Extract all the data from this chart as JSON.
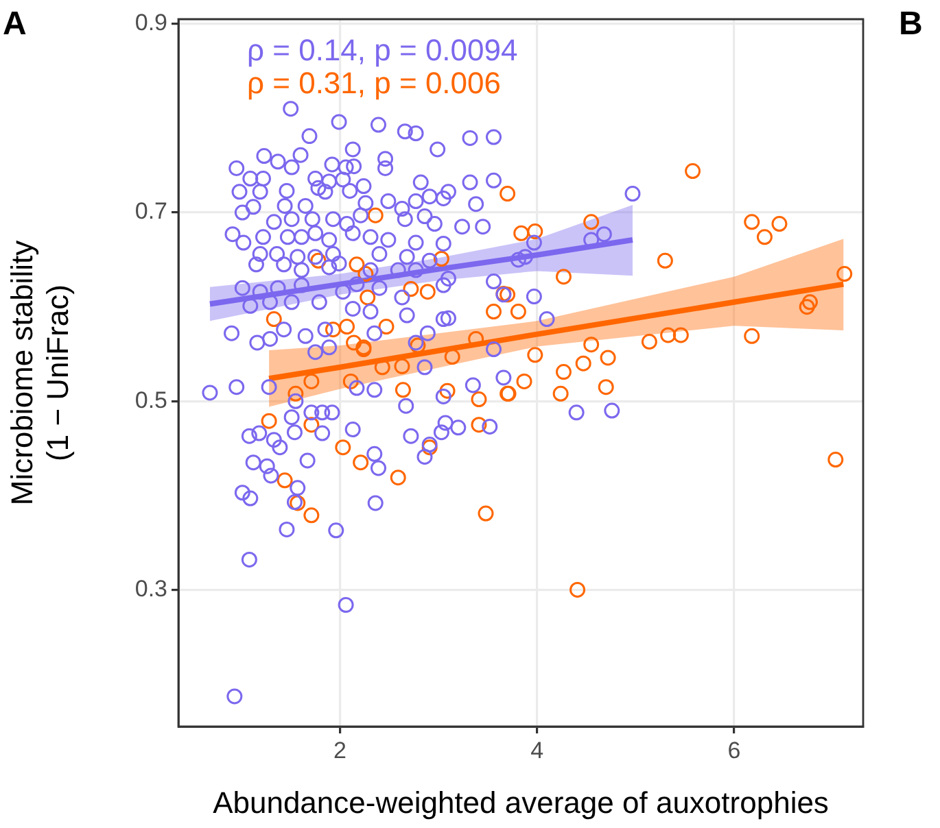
{
  "chart_data": {
    "type": "scatter",
    "xlabel": "Abundance-weighted average of auxotrophies",
    "ylabel": "Microbiome stability\n(1 − UniFrac)",
    "xlim": [
      0.36,
      7.31
    ],
    "ylim": [
      0.155,
      0.905
    ],
    "xticks": [
      2,
      4,
      6
    ],
    "yticks": [
      0.3,
      0.5,
      0.7,
      0.9
    ],
    "grid": true,
    "legend": false,
    "marker": "circle",
    "annotations": [
      "ρ = 0.14, p = 0.0094",
      "ρ = 0.31, p = 0.006",
      "A",
      "B"
    ],
    "series": [
      {
        "type": "scatter",
        "color": "#7b68ee",
        "x": [
          4.97,
          4.55,
          4.68,
          3.97,
          3.81,
          3.88,
          3.97,
          4.1,
          4.4,
          4.76,
          0.68,
          0.95,
          1.28,
          1.55,
          1.51,
          1.71,
          1.82,
          1.92,
          1.54,
          1.08,
          1.18,
          1.33,
          1.39,
          1.82,
          2.13,
          1.67,
          1.12,
          1.26,
          1.3,
          1.57,
          1.01,
          1.09,
          1.54,
          1.46,
          1.96,
          1.08,
          2.36,
          2.35,
          2.39,
          2.72,
          2.86,
          2.91,
          3.03,
          3.07,
          3.2,
          3.52,
          2.67,
          3.05,
          3.35,
          3.66,
          2.35,
          2.17,
          2.86,
          3.56,
          2.06,
          0.93,
          1.5,
          1.99,
          1.69,
          2.39,
          2.66,
          2.77,
          2.99,
          3.32,
          3.56,
          0.95,
          1.23,
          1.37,
          1.6,
          1.51,
          2.13,
          1.92,
          2.06,
          2.14,
          2.46,
          2.46,
          1.09,
          1.22,
          0.98,
          1.19,
          1.46,
          1.75,
          1.78,
          1.89,
          2.03,
          2.24,
          1.85,
          2.1,
          2.82,
          2.91,
          3.1,
          3.05,
          3.32,
          3.56,
          1.01,
          1.12,
          1.44,
          1.65,
          2.26,
          2.49,
          2.63,
          2.77,
          3.38,
          0.91,
          1.02,
          1.22,
          1.33,
          1.51,
          1.72,
          1.93,
          2.07,
          2.21,
          2.66,
          2.86,
          2.96,
          3.24,
          3.45,
          1.47,
          1.61,
          1.75,
          1.89,
          2.13,
          2.31,
          2.49,
          2.77,
          3.05,
          1.19,
          1.36,
          1.57,
          1.75,
          1.93,
          2.4,
          2.68,
          2.91,
          1.15,
          1.43,
          1.61,
          1.89,
          1.99,
          2.31,
          2.59,
          2.77,
          1.01,
          1.19,
          1.37,
          1.61,
          1.09,
          1.29,
          1.51,
          1.79,
          2.03,
          2.17,
          2.4,
          2.63,
          3.1,
          3.05,
          3.56,
          3.66,
          2.31,
          2.13,
          2.68,
          3.05,
          3.1,
          0.9,
          1.16,
          1.29,
          1.43,
          1.65,
          1.85,
          2.77,
          2.89,
          1.75,
          1.89,
          2.35
        ],
        "values": [
          0.72,
          0.671,
          0.677,
          0.668,
          0.65,
          0.653,
          0.611,
          0.587,
          0.488,
          0.49,
          0.509,
          0.515,
          0.515,
          0.5,
          0.483,
          0.488,
          0.488,
          0.488,
          0.467,
          0.463,
          0.466,
          0.459,
          0.451,
          0.466,
          0.47,
          0.437,
          0.435,
          0.431,
          0.421,
          0.408,
          0.403,
          0.397,
          0.393,
          0.364,
          0.363,
          0.332,
          0.392,
          0.444,
          0.429,
          0.463,
          0.441,
          0.454,
          0.467,
          0.477,
          0.472,
          0.473,
          0.495,
          0.505,
          0.517,
          0.525,
          0.512,
          0.514,
          0.536,
          0.555,
          0.284,
          0.187,
          0.81,
          0.796,
          0.781,
          0.793,
          0.786,
          0.784,
          0.767,
          0.779,
          0.78,
          0.747,
          0.76,
          0.754,
          0.761,
          0.748,
          0.767,
          0.751,
          0.748,
          0.749,
          0.757,
          0.747,
          0.736,
          0.736,
          0.722,
          0.722,
          0.723,
          0.736,
          0.726,
          0.733,
          0.735,
          0.728,
          0.722,
          0.723,
          0.732,
          0.717,
          0.722,
          0.715,
          0.732,
          0.734,
          0.7,
          0.706,
          0.707,
          0.707,
          0.71,
          0.712,
          0.704,
          0.712,
          0.709,
          0.677,
          0.668,
          0.674,
          0.69,
          0.693,
          0.693,
          0.693,
          0.688,
          0.697,
          0.693,
          0.696,
          0.688,
          0.685,
          0.685,
          0.674,
          0.674,
          0.678,
          0.671,
          0.678,
          0.674,
          0.671,
          0.668,
          0.667,
          0.656,
          0.656,
          0.653,
          0.653,
          0.656,
          0.656,
          0.653,
          0.649,
          0.645,
          0.645,
          0.639,
          0.642,
          0.646,
          0.639,
          0.639,
          0.639,
          0.62,
          0.616,
          0.62,
          0.623,
          0.601,
          0.605,
          0.605,
          0.605,
          0.616,
          0.624,
          0.62,
          0.61,
          0.63,
          0.623,
          0.627,
          0.613,
          0.595,
          0.598,
          0.591,
          0.587,
          0.588,
          0.572,
          0.562,
          0.566,
          0.576,
          0.569,
          0.576,
          0.562,
          0.572,
          0.552,
          0.557,
          0.572
        ]
      },
      {
        "type": "scatter",
        "color": "#ff6600",
        "x": [
          5.58,
          3.7,
          6.18,
          6.46,
          6.31,
          5.3,
          7.12,
          4.55,
          3.84,
          3.98,
          4.27,
          3.7,
          3.81,
          6.77,
          6.74,
          6.18,
          5.14,
          5.33,
          5.46,
          4.55,
          3.98,
          4.47,
          4.72,
          4.27,
          3.87,
          3.7,
          4.24,
          4.7,
          7.03,
          4.41,
          1.28,
          1.71,
          2.03,
          2.21,
          2.59,
          1.44,
          1.57,
          1.71,
          2.91,
          3.48,
          3.09,
          3.41,
          3.41,
          3.71,
          2.64,
          1.55,
          1.71,
          2.11,
          2.43,
          2.63,
          3.14,
          2.24,
          2.36,
          1.78,
          2.17,
          2.26,
          2.28,
          1.33,
          1.93,
          2.07,
          2.47,
          2.72,
          2.89,
          3.03,
          3.66,
          3.56,
          2.14,
          2.24,
          3.38,
          2.79
        ],
        "values": [
          0.744,
          0.72,
          0.69,
          0.688,
          0.674,
          0.649,
          0.635,
          0.69,
          0.678,
          0.68,
          0.632,
          0.613,
          0.595,
          0.605,
          0.6,
          0.569,
          0.563,
          0.57,
          0.57,
          0.56,
          0.549,
          0.54,
          0.546,
          0.531,
          0.521,
          0.508,
          0.508,
          0.515,
          0.438,
          0.3,
          0.479,
          0.475,
          0.451,
          0.435,
          0.419,
          0.416,
          0.392,
          0.379,
          0.451,
          0.381,
          0.511,
          0.502,
          0.475,
          0.508,
          0.512,
          0.508,
          0.521,
          0.521,
          0.536,
          0.537,
          0.547,
          0.555,
          0.697,
          0.649,
          0.645,
          0.635,
          0.61,
          0.587,
          0.576,
          0.579,
          0.579,
          0.619,
          0.616,
          0.651,
          0.614,
          0.595,
          0.562,
          0.557,
          0.566,
          0.559
        ]
      },
      {
        "type": "line",
        "marker": "none",
        "color": "#7b68ee",
        "x": [
          0.68,
          2,
          3,
          4,
          4.97
        ],
        "values": [
          0.603,
          0.624,
          0.64,
          0.655,
          0.671
        ],
        "lower": [
          0.585,
          0.613,
          0.628,
          0.638,
          0.633
        ],
        "upper": [
          0.621,
          0.635,
          0.652,
          0.672,
          0.708
        ]
      },
      {
        "type": "line",
        "marker": "none",
        "color": "#ff6600",
        "x": [
          1.28,
          2,
          4,
          6,
          7.11
        ],
        "values": [
          0.524,
          0.536,
          0.571,
          0.605,
          0.624
        ],
        "lower": [
          0.494,
          0.513,
          0.558,
          0.58,
          0.575
        ],
        "upper": [
          0.554,
          0.559,
          0.585,
          0.632,
          0.672
        ]
      }
    ]
  }
}
